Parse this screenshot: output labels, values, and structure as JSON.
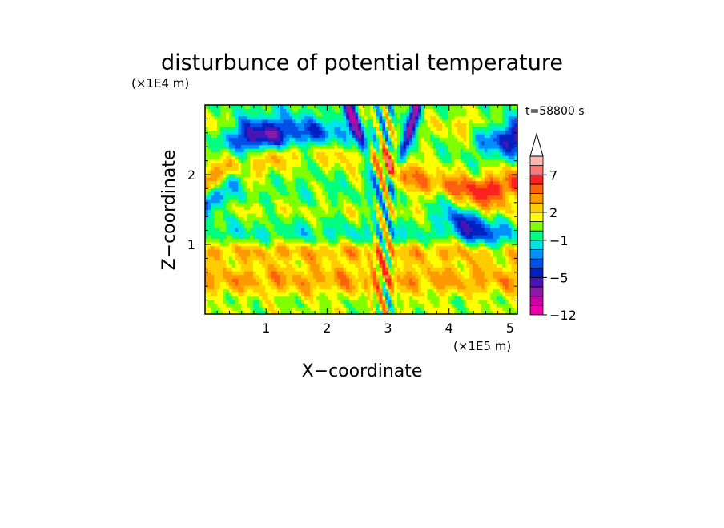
{
  "chart_data": {
    "type": "heatmap",
    "title": "disturbunce of potential temperature",
    "xlabel": "X−coordinate",
    "ylabel": "Z−coordinate",
    "x_unit": "(×1E5 m)",
    "y_unit": "(×1E4 m)",
    "time_label": "t=58800 s",
    "xlim": [
      0,
      5.12
    ],
    "ylim": [
      0,
      3.0
    ],
    "x_ticks": [
      "1",
      "2",
      "3",
      "4",
      "5"
    ],
    "x_tick_values": [
      1,
      2,
      3,
      4,
      5
    ],
    "y_ticks": [
      "1",
      "2"
    ],
    "y_tick_values": [
      1,
      2
    ],
    "grid": false,
    "colorbar": {
      "labels": [
        "7",
        "2",
        "−1",
        "−5",
        "−12"
      ],
      "label_levels": [
        7,
        2,
        -1,
        -5,
        -12
      ],
      "levels": [
        -12,
        -10,
        -8,
        -6,
        -5,
        -4,
        -3,
        -2,
        -1,
        0,
        1,
        2,
        3,
        4,
        5,
        7,
        9,
        11
      ],
      "colors": [
        "#ee00aa",
        "#cc00aa",
        "#8a1aa8",
        "#4a14b4",
        "#0020c0",
        "#0050e8",
        "#0090ff",
        "#00e6e6",
        "#00ff80",
        "#80ff00",
        "#ffff00",
        "#ffcc00",
        "#ff9900",
        "#ff6010",
        "#ff2020",
        "#ff7878",
        "#ffb4b4"
      ],
      "extend": "max"
    }
  }
}
